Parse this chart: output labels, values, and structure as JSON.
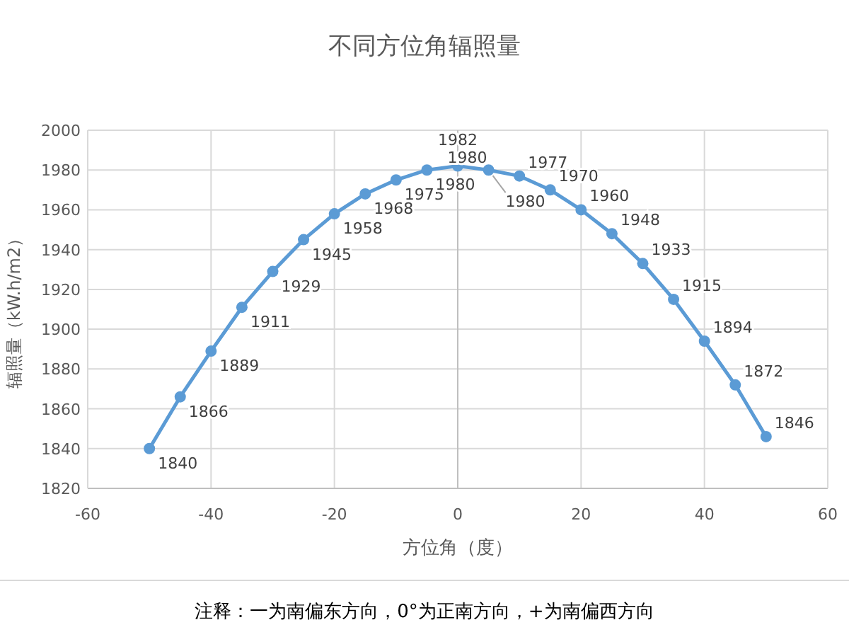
{
  "chart_data": {
    "type": "line",
    "title": "不同方位角辐照量",
    "xlabel": "方位角（度）",
    "ylabel": "辐照量（kW.h/m2）",
    "x": [
      -50,
      -45,
      -40,
      -35,
      -30,
      -25,
      -20,
      -15,
      -10,
      -5,
      0,
      5,
      10,
      15,
      20,
      25,
      30,
      35,
      40,
      45,
      50
    ],
    "series": [
      {
        "color": "#5b9bd5",
        "values": [
          1840,
          1866,
          1889,
          1911,
          1929,
          1945,
          1958,
          1968,
          1975,
          1980,
          1982,
          1980,
          1977,
          1970,
          1960,
          1948,
          1933,
          1915,
          1894,
          1872,
          1846
        ]
      }
    ],
    "data_labels": true,
    "annotations": [
      {
        "text": "1980",
        "x": 5,
        "y": 1980
      },
      "注释：一为南偏东方向，0°为正南方向，+为南偏西方向"
    ],
    "xlim": [
      -60,
      60
    ],
    "xticks": [
      -60,
      -40,
      -20,
      0,
      20,
      40,
      60
    ],
    "ylim": [
      1820,
      2000
    ],
    "yticks": [
      1820,
      1840,
      1860,
      1880,
      1900,
      1920,
      1940,
      1960,
      1980,
      2000
    ],
    "grid": true,
    "marker": "circle",
    "line_style": "solid"
  }
}
